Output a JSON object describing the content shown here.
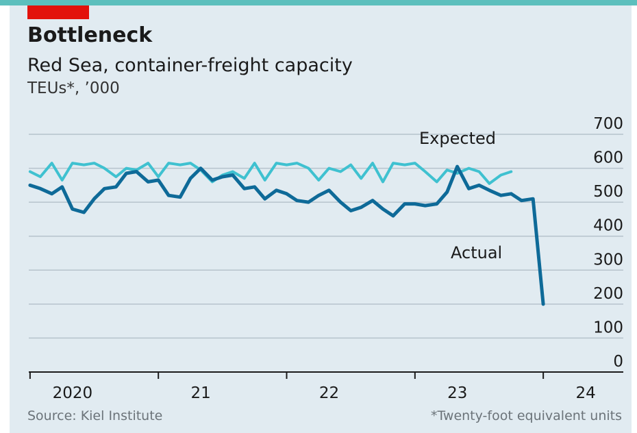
{
  "header": {
    "title": "Bottleneck",
    "subtitle": "Red Sea, container-freight capacity",
    "units": "TEUs*, ’000"
  },
  "footer": {
    "source": "Source: Kiel Institute",
    "footnote": "*Twenty-foot equivalent units"
  },
  "colors": {
    "accent_tag": "#e3120b",
    "expected": "#3fc1d0",
    "actual": "#0e6a98",
    "grid": "#b6c3cc",
    "panel": "#e1ebf1"
  },
  "chart_data": {
    "type": "line",
    "title": "Bottleneck",
    "subtitle": "Red Sea, container-freight capacity",
    "ylabel": "TEUs*, ’000",
    "ylim": [
      0,
      700
    ],
    "yticks": [
      0,
      100,
      200,
      300,
      400,
      500,
      600,
      700
    ],
    "y_axis_side": "right",
    "grid": true,
    "x_range": [
      2019.99,
      2024.09
    ],
    "x_ticks": [
      2020,
      2021,
      2022,
      2023,
      2024
    ],
    "x_tick_labels": [
      "2020",
      "21",
      "22",
      "23",
      "24"
    ],
    "series": [
      {
        "name": "Expected",
        "label_position": "above line, right of 2023",
        "x": [
          2020.0,
          2020.08,
          2020.17,
          2020.25,
          2020.33,
          2020.42,
          2020.5,
          2020.58,
          2020.67,
          2020.75,
          2020.83,
          2020.92,
          2021.0,
          2021.08,
          2021.17,
          2021.25,
          2021.33,
          2021.42,
          2021.5,
          2021.58,
          2021.67,
          2021.75,
          2021.83,
          2021.92,
          2022.0,
          2022.08,
          2022.17,
          2022.25,
          2022.33,
          2022.42,
          2022.5,
          2022.58,
          2022.67,
          2022.75,
          2022.83,
          2022.92,
          2023.0,
          2023.08,
          2023.17,
          2023.25,
          2023.33,
          2023.42,
          2023.5,
          2023.58,
          2023.67,
          2023.75
        ],
        "values": [
          590,
          575,
          615,
          565,
          615,
          610,
          615,
          600,
          575,
          600,
          595,
          615,
          575,
          615,
          610,
          615,
          595,
          560,
          580,
          590,
          570,
          615,
          565,
          615,
          610,
          615,
          600,
          565,
          600,
          590,
          610,
          570,
          615,
          560,
          615,
          610,
          615,
          590,
          560,
          595,
          585,
          600,
          590,
          555,
          580,
          590
        ]
      },
      {
        "name": "Actual",
        "label_position": "left of final drop",
        "x": [
          2020.0,
          2020.08,
          2020.17,
          2020.25,
          2020.33,
          2020.42,
          2020.5,
          2020.58,
          2020.67,
          2020.75,
          2020.83,
          2020.92,
          2021.0,
          2021.08,
          2021.17,
          2021.25,
          2021.33,
          2021.42,
          2021.5,
          2021.58,
          2021.67,
          2021.75,
          2021.83,
          2021.92,
          2022.0,
          2022.08,
          2022.17,
          2022.25,
          2022.33,
          2022.42,
          2022.5,
          2022.58,
          2022.67,
          2022.75,
          2022.83,
          2022.92,
          2023.0,
          2023.08,
          2023.17,
          2023.25,
          2023.33,
          2023.42,
          2023.5,
          2023.58,
          2023.67,
          2023.75,
          2023.83,
          2023.92,
          2024.0
        ],
        "values": [
          550,
          540,
          525,
          545,
          480,
          470,
          510,
          540,
          545,
          585,
          590,
          560,
          565,
          520,
          515,
          570,
          600,
          565,
          575,
          580,
          540,
          545,
          510,
          535,
          525,
          505,
          500,
          520,
          535,
          500,
          475,
          485,
          505,
          480,
          460,
          495,
          495,
          490,
          495,
          530,
          605,
          540,
          550,
          535,
          520,
          525,
          505,
          510,
          200
        ]
      }
    ]
  }
}
